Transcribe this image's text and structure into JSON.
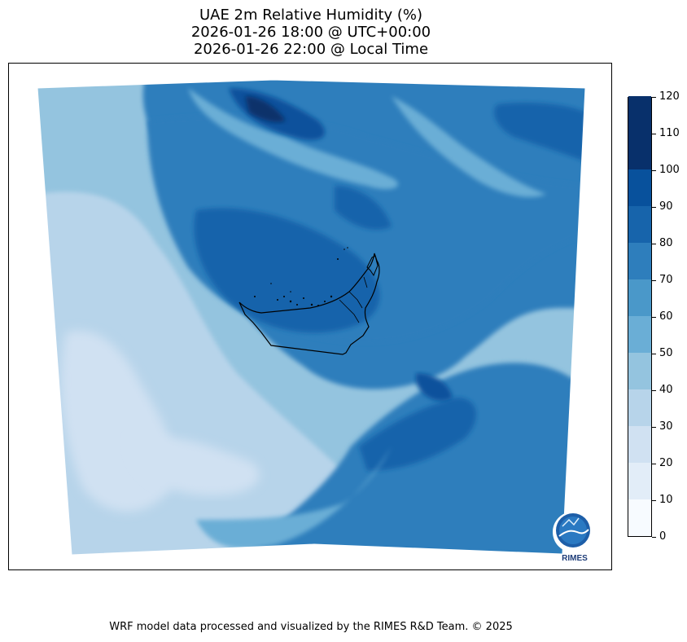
{
  "title": {
    "line1": "UAE 2m Relative Humidity (%)",
    "line2": "2026-01-26 18:00 @ UTC+00:00",
    "line3": "2026-01-26 22:00 @ Local Time"
  },
  "colorbar": {
    "levels": [
      0,
      10,
      20,
      30,
      40,
      50,
      60,
      70,
      80,
      90,
      100,
      110,
      120
    ],
    "labels": [
      "0",
      "10",
      "20",
      "30",
      "40",
      "50",
      "60",
      "70",
      "80",
      "90",
      "100",
      "110",
      "120"
    ],
    "colors": [
      "#f7fbff",
      "#e2edf8",
      "#d0e1f2",
      "#b7d4ea",
      "#94c4df",
      "#6aaed6",
      "#4a98c9",
      "#2e7ebc",
      "#1764ab",
      "#08519c",
      "#08306b",
      "#08306b"
    ]
  },
  "logo": {
    "text": "RIMES"
  },
  "footer": "WRF model data processed and visualized by the RIMES R&D Team. © 2025"
}
